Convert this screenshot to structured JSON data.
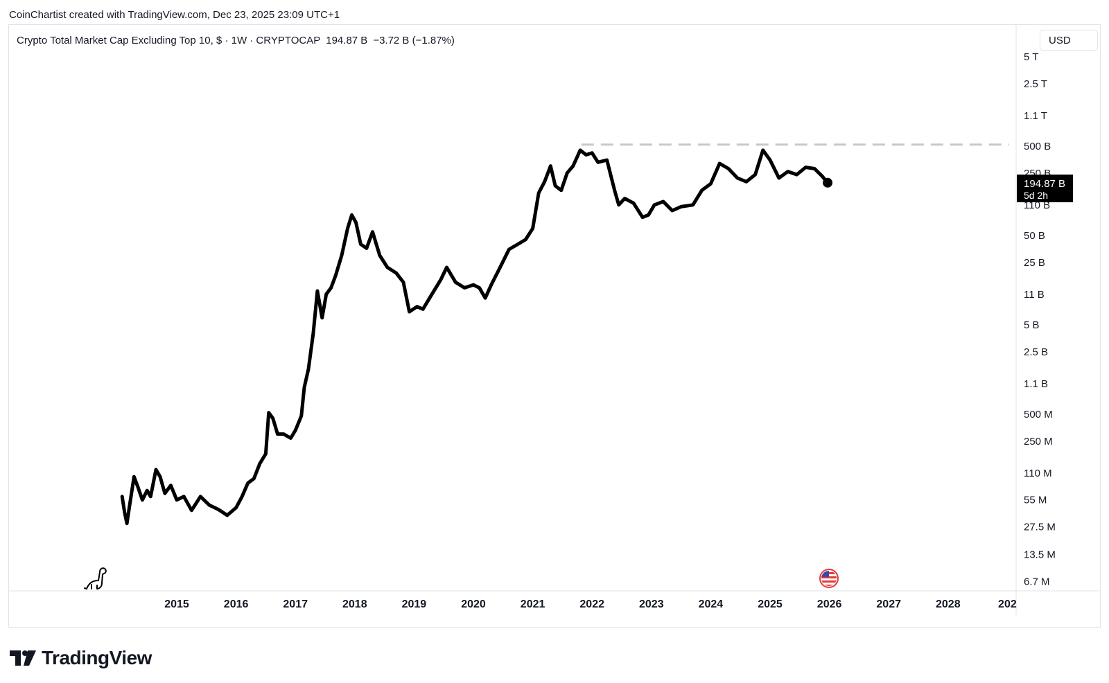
{
  "header": {
    "credit": "CoinChartist created with TradingView.com, Dec 23, 2025 23:09 UTC+1"
  },
  "legend": {
    "title": "Crypto Total Market Cap Excluding Top 10, $ · 1W · CRYPTOCAP",
    "last_value": "194.87 B",
    "change": "−3.72 B (−1.87%)"
  },
  "currency_button": {
    "label": "USD"
  },
  "price_badge": {
    "value": "194.87 B",
    "countdown": "5d 2h"
  },
  "footer": {
    "brand": "TradingView"
  },
  "colors": {
    "line": "#000000",
    "resistance": "#c8c8c8",
    "badge_bg": "#000000",
    "badge_text": "#ffffff",
    "grid_border": "#e0e3eb"
  },
  "icons": {
    "left_bottom": "dinosaur-icon",
    "event_marker": "us-flag-icon",
    "brand": "tradingview-logo-icon"
  },
  "chart_data": {
    "type": "line",
    "title": "Crypto Total Market Cap Excluding Top 10",
    "xlabel": "",
    "ylabel": "",
    "y_scale": "log",
    "x_ticks": [
      "2015",
      "2016",
      "2017",
      "2018",
      "2019",
      "2020",
      "2021",
      "2022",
      "2023",
      "2024",
      "2025",
      "2026",
      "2027",
      "2028",
      "202"
    ],
    "y_ticks": [
      "5 T",
      "2.5 T",
      "1.1 T",
      "500 B",
      "250 B",
      "110 B",
      "50 B",
      "25 B",
      "11 B",
      "5 B",
      "2.5 B",
      "1.1 B",
      "500 M",
      "250 M",
      "110 M",
      "55 M",
      "27.5 M",
      "13.5 M",
      "6.7 M"
    ],
    "y_tick_values": [
      5000000000000.0,
      2500000000000.0,
      1100000000000.0,
      500000000000.0,
      250000000000.0,
      110000000000.0,
      50000000000.0,
      25000000000.0,
      11000000000.0,
      5000000000.0,
      2500000000.0,
      1100000000.0,
      500000000.0,
      250000000.0,
      110000000.0,
      55000000.0,
      27500000.0,
      13500000.0,
      6700000.0
    ],
    "resistance_level": 520000000000.0,
    "last_value": 194870000000.0,
    "series": [
      {
        "values": [
          [
            2014.08,
            60000000.0
          ],
          [
            2014.12,
            40000000.0
          ],
          [
            2014.16,
            30000000.0
          ],
          [
            2014.2,
            45000000.0
          ],
          [
            2014.28,
            100000000.0
          ],
          [
            2014.35,
            75000000.0
          ],
          [
            2014.42,
            55000000.0
          ],
          [
            2014.5,
            70000000.0
          ],
          [
            2014.56,
            60000000.0
          ],
          [
            2014.65,
            120000000.0
          ],
          [
            2014.72,
            100000000.0
          ],
          [
            2014.8,
            65000000.0
          ],
          [
            2014.9,
            80000000.0
          ],
          [
            2015.0,
            55000000.0
          ],
          [
            2015.12,
            60000000.0
          ],
          [
            2015.25,
            42000000.0
          ],
          [
            2015.4,
            60000000.0
          ],
          [
            2015.55,
            48000000.0
          ],
          [
            2015.7,
            43000000.0
          ],
          [
            2015.85,
            37000000.0
          ],
          [
            2016.0,
            45000000.0
          ],
          [
            2016.1,
            60000000.0
          ],
          [
            2016.2,
            85000000.0
          ],
          [
            2016.3,
            95000000.0
          ],
          [
            2016.4,
            140000000.0
          ],
          [
            2016.5,
            180000000.0
          ],
          [
            2016.55,
            520000000.0
          ],
          [
            2016.62,
            450000000.0
          ],
          [
            2016.7,
            300000000.0
          ],
          [
            2016.8,
            300000000.0
          ],
          [
            2016.92,
            270000000.0
          ],
          [
            2017.0,
            330000000.0
          ],
          [
            2017.1,
            480000000.0
          ],
          [
            2017.15,
            1000000000.0
          ],
          [
            2017.22,
            1600000000.0
          ],
          [
            2017.3,
            4000000000.0
          ],
          [
            2017.37,
            12000000000.0
          ],
          [
            2017.45,
            6000000000.0
          ],
          [
            2017.52,
            11000000000.0
          ],
          [
            2017.6,
            13000000000.0
          ],
          [
            2017.68,
            18000000000.0
          ],
          [
            2017.78,
            30000000000.0
          ],
          [
            2017.88,
            60000000000.0
          ],
          [
            2017.95,
            85000000000.0
          ],
          [
            2018.02,
            70000000000.0
          ],
          [
            2018.1,
            40000000000.0
          ],
          [
            2018.2,
            36000000000.0
          ],
          [
            2018.3,
            55000000000.0
          ],
          [
            2018.42,
            30000000000.0
          ],
          [
            2018.55,
            22000000000.0
          ],
          [
            2018.7,
            19000000000.0
          ],
          [
            2018.82,
            15000000000.0
          ],
          [
            2018.92,
            7000000000.0
          ],
          [
            2019.05,
            8000000000.0
          ],
          [
            2019.15,
            7500000000.0
          ],
          [
            2019.3,
            11000000000.0
          ],
          [
            2019.45,
            16000000000.0
          ],
          [
            2019.55,
            22000000000.0
          ],
          [
            2019.7,
            15000000000.0
          ],
          [
            2019.85,
            13000000000.0
          ],
          [
            2020.0,
            14000000000.0
          ],
          [
            2020.1,
            13000000000.0
          ],
          [
            2020.2,
            10000000000.0
          ],
          [
            2020.3,
            14000000000.0
          ],
          [
            2020.45,
            22000000000.0
          ],
          [
            2020.6,
            35000000000.0
          ],
          [
            2020.75,
            40000000000.0
          ],
          [
            2020.88,
            45000000000.0
          ],
          [
            2021.0,
            60000000000.0
          ],
          [
            2021.1,
            150000000000.0
          ],
          [
            2021.2,
            200000000000.0
          ],
          [
            2021.3,
            300000000000.0
          ],
          [
            2021.38,
            180000000000.0
          ],
          [
            2021.48,
            160000000000.0
          ],
          [
            2021.58,
            250000000000.0
          ],
          [
            2021.68,
            300000000000.0
          ],
          [
            2021.8,
            450000000000.0
          ],
          [
            2021.9,
            400000000000.0
          ],
          [
            2022.0,
            420000000000.0
          ],
          [
            2022.1,
            330000000000.0
          ],
          [
            2022.25,
            350000000000.0
          ],
          [
            2022.38,
            160000000000.0
          ],
          [
            2022.45,
            110000000000.0
          ],
          [
            2022.55,
            130000000000.0
          ],
          [
            2022.7,
            115000000000.0
          ],
          [
            2022.85,
            80000000000.0
          ],
          [
            2022.95,
            85000000000.0
          ],
          [
            2023.05,
            110000000000.0
          ],
          [
            2023.2,
            120000000000.0
          ],
          [
            2023.35,
            95000000000.0
          ],
          [
            2023.5,
            105000000000.0
          ],
          [
            2023.7,
            110000000000.0
          ],
          [
            2023.85,
            160000000000.0
          ],
          [
            2024.0,
            190000000000.0
          ],
          [
            2024.15,
            320000000000.0
          ],
          [
            2024.3,
            280000000000.0
          ],
          [
            2024.45,
            220000000000.0
          ],
          [
            2024.6,
            200000000000.0
          ],
          [
            2024.75,
            240000000000.0
          ],
          [
            2024.88,
            450000000000.0
          ],
          [
            2025.0,
            350000000000.0
          ],
          [
            2025.15,
            220000000000.0
          ],
          [
            2025.3,
            260000000000.0
          ],
          [
            2025.45,
            240000000000.0
          ],
          [
            2025.6,
            290000000000.0
          ],
          [
            2025.75,
            280000000000.0
          ],
          [
            2025.88,
            230000000000.0
          ],
          [
            2025.97,
            194870000000.0
          ]
        ]
      }
    ]
  }
}
